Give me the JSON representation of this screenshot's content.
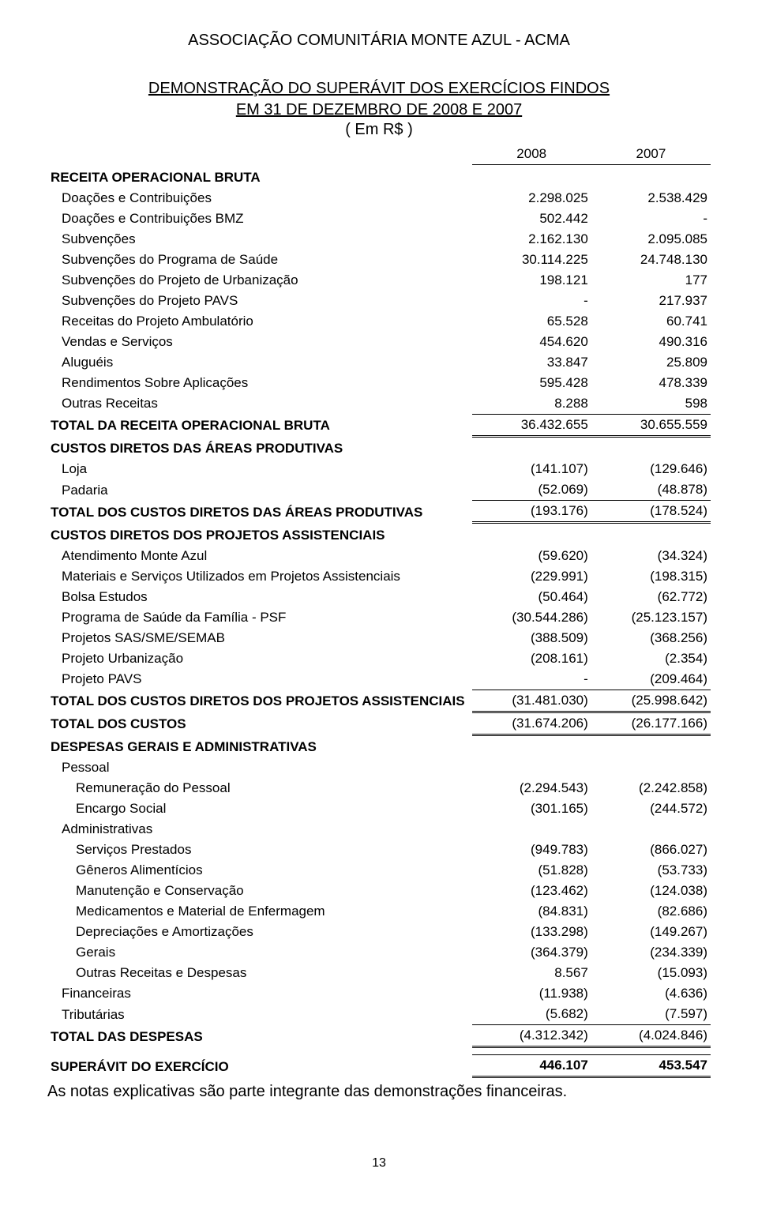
{
  "header": {
    "org": "ASSOCIAÇÃO COMUNITÁRIA MONTE AZUL - ACMA",
    "title1": "DEMONSTRAÇÃO DO SUPERÁVIT DOS EXERCÍCIOS FINDOS",
    "title2": "EM 31 DE DEZEMBRO DE 2008 E 2007",
    "unit": "( Em R$ )",
    "year1": "2008",
    "year2": "2007"
  },
  "sections": {
    "receita_title": "RECEITA OPERACIONAL BRUTA",
    "receita_rows": [
      {
        "label": "Doações e Contribuições",
        "v1": "2.298.025",
        "v2": "2.538.429"
      },
      {
        "label": "Doações e Contribuições BMZ",
        "v1": "502.442",
        "v2": "-"
      },
      {
        "label": "Subvenções",
        "v1": "2.162.130",
        "v2": "2.095.085"
      },
      {
        "label": "Subvenções do Programa de Saúde",
        "v1": "30.114.225",
        "v2": "24.748.130"
      },
      {
        "label": "Subvenções do Projeto de Urbanização",
        "v1": "198.121",
        "v2": "177"
      },
      {
        "label": "Subvenções do Projeto PAVS",
        "v1": "-",
        "v2": "217.937"
      },
      {
        "label": "Receitas do Projeto Ambulatório",
        "v1": "65.528",
        "v2": "60.741"
      },
      {
        "label": "Vendas e Serviços",
        "v1": "454.620",
        "v2": "490.316"
      },
      {
        "label": "Aluguéis",
        "v1": "33.847",
        "v2": "25.809"
      },
      {
        "label": "Rendimentos Sobre Aplicações",
        "v1": "595.428",
        "v2": "478.339"
      },
      {
        "label": "Outras Receitas",
        "v1": "8.288",
        "v2": "598"
      }
    ],
    "receita_total": {
      "label": "TOTAL DA RECEITA OPERACIONAL BRUTA",
      "v1": "36.432.655",
      "v2": "30.655.559"
    },
    "custos_areas_title": "CUSTOS DIRETOS DAS ÁREAS PRODUTIVAS",
    "custos_areas_rows": [
      {
        "label": "Loja",
        "v1": "(141.107)",
        "v2": "(129.646)"
      },
      {
        "label": "Padaria",
        "v1": "(52.069)",
        "v2": "(48.878)"
      }
    ],
    "custos_areas_total": {
      "label": "TOTAL DOS CUSTOS DIRETOS DAS ÁREAS PRODUTIVAS",
      "v1": "(193.176)",
      "v2": "(178.524)"
    },
    "custos_proj_title": "CUSTOS DIRETOS DOS PROJETOS ASSISTENCIAIS",
    "custos_proj_rows": [
      {
        "label": "Atendimento Monte Azul",
        "v1": "(59.620)",
        "v2": "(34.324)"
      },
      {
        "label": "Materiais e Serviços Utilizados em Projetos Assistenciais",
        "v1": "(229.991)",
        "v2": "(198.315)"
      },
      {
        "label": "Bolsa Estudos",
        "v1": "(50.464)",
        "v2": "(62.772)"
      },
      {
        "label": "Programa de Saúde da Família - PSF",
        "v1": "(30.544.286)",
        "v2": "(25.123.157)"
      },
      {
        "label": "Projetos SAS/SME/SEMAB",
        "v1": "(388.509)",
        "v2": "(368.256)"
      },
      {
        "label": "Projeto Urbanização",
        "v1": "(208.161)",
        "v2": "(2.354)"
      },
      {
        "label": "Projeto PAVS",
        "v1": "-",
        "v2": "(209.464)"
      }
    ],
    "custos_proj_total": {
      "label": "TOTAL DOS CUSTOS DIRETOS DOS PROJETOS ASSISTENCIAIS",
      "v1": "(31.481.030)",
      "v2": "(25.998.642)"
    },
    "custos_total": {
      "label": "TOTAL DOS CUSTOS",
      "v1": "(31.674.206)",
      "v2": "(26.177.166)"
    },
    "despesas_title": "DESPESAS GERAIS E ADMINISTRATIVAS",
    "despesas_pessoal_title": "Pessoal",
    "despesas_pessoal_rows": [
      {
        "label": "Remuneração do Pessoal",
        "v1": "(2.294.543)",
        "v2": "(2.242.858)"
      },
      {
        "label": "Encargo Social",
        "v1": "(301.165)",
        "v2": "(244.572)"
      }
    ],
    "despesas_admin_title": "Administrativas",
    "despesas_admin_rows": [
      {
        "label": "Serviços Prestados",
        "v1": "(949.783)",
        "v2": "(866.027)"
      },
      {
        "label": "Gêneros Alimentícios",
        "v1": "(51.828)",
        "v2": "(53.733)"
      },
      {
        "label": "Manutenção e Conservação",
        "v1": "(123.462)",
        "v2": "(124.038)"
      },
      {
        "label": "Medicamentos e Material de Enfermagem",
        "v1": "(84.831)",
        "v2": "(82.686)"
      },
      {
        "label": "Depreciações e Amortizações",
        "v1": "(133.298)",
        "v2": "(149.267)"
      },
      {
        "label": "Gerais",
        "v1": "(364.379)",
        "v2": "(234.339)"
      },
      {
        "label": "Outras Receitas e Despesas",
        "v1": "8.567",
        "v2": "(15.093)"
      }
    ],
    "despesas_fin": {
      "label": "Financeiras",
      "v1": "(11.938)",
      "v2": "(4.636)"
    },
    "despesas_trib": {
      "label": "Tributárias",
      "v1": "(5.682)",
      "v2": "(7.597)"
    },
    "despesas_total": {
      "label": "TOTAL DAS DESPESAS",
      "v1": "(4.312.342)",
      "v2": "(4.024.846)"
    },
    "superavit": {
      "label": "SUPERÁVIT  DO EXERCÍCIO",
      "v1": "446.107",
      "v2": "453.547"
    }
  },
  "footnote": "As notas explicativas são parte integrante das demonstrações financeiras.",
  "page_number": "13"
}
